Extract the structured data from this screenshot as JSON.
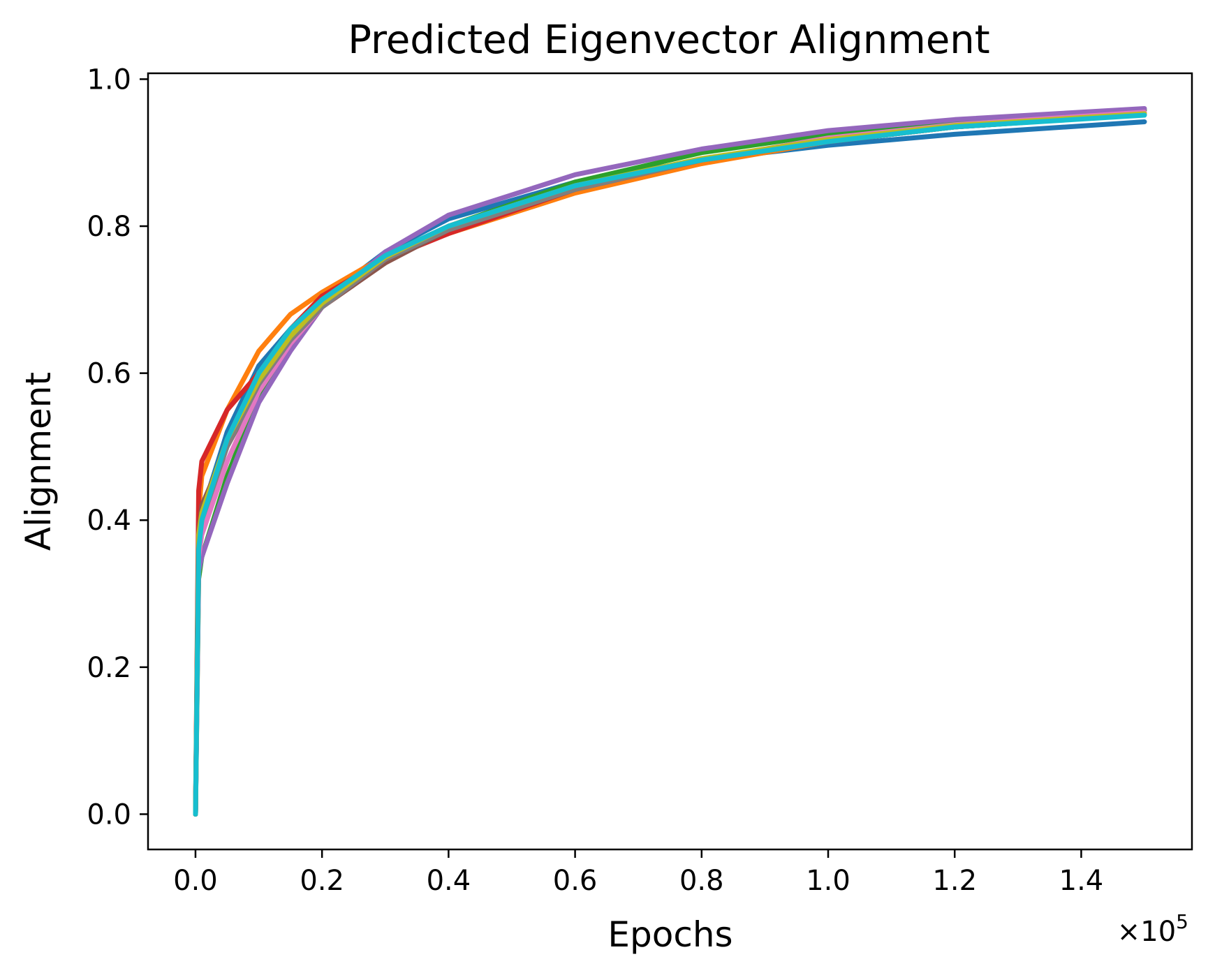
{
  "chart_data": {
    "type": "line",
    "title": "Predicted Eigenvector Alignment",
    "xlabel": "Epochs",
    "ylabel": "Alignment",
    "x_offset_label": "×10",
    "x_offset_exponent": "5",
    "xlim": [
      -0.075,
      1.575
    ],
    "ylim": [
      -0.048,
      1.008
    ],
    "x_ticks": [
      0.0,
      0.2,
      0.4,
      0.6,
      0.8,
      1.0,
      1.2,
      1.4
    ],
    "x_tick_labels": [
      "0.0",
      "0.2",
      "0.4",
      "0.6",
      "0.8",
      "1.0",
      "1.2",
      "1.4"
    ],
    "y_ticks": [
      0.0,
      0.2,
      0.4,
      0.6,
      0.8,
      1.0
    ],
    "y_tick_labels": [
      "0.0",
      "0.2",
      "0.4",
      "0.6",
      "0.8",
      "1.0"
    ],
    "grid": false,
    "legend": "none",
    "x": [
      0.0,
      0.005,
      0.01,
      0.05,
      0.1,
      0.15,
      0.2,
      0.3,
      0.4,
      0.6,
      0.8,
      1.0,
      1.2,
      1.5
    ],
    "series": [
      {
        "color": "#1f77b4",
        "values": [
          0.0,
          0.36,
          0.41,
          0.52,
          0.61,
          0.66,
          0.7,
          0.765,
          0.81,
          0.86,
          0.89,
          0.91,
          0.925,
          0.942
        ]
      },
      {
        "color": "#ff7f0e",
        "values": [
          0.0,
          0.41,
          0.46,
          0.55,
          0.63,
          0.68,
          0.71,
          0.76,
          0.79,
          0.845,
          0.885,
          0.915,
          0.935,
          0.952
        ]
      },
      {
        "color": "#2ca02c",
        "values": [
          0.0,
          0.32,
          0.35,
          0.46,
          0.57,
          0.64,
          0.69,
          0.76,
          0.8,
          0.86,
          0.9,
          0.925,
          0.942,
          0.958
        ]
      },
      {
        "color": "#d62728",
        "values": [
          0.0,
          0.44,
          0.48,
          0.55,
          0.6,
          0.66,
          0.705,
          0.755,
          0.79,
          0.85,
          0.89,
          0.915,
          0.935,
          0.952
        ]
      },
      {
        "color": "#9467bd",
        "values": [
          0.0,
          0.33,
          0.35,
          0.45,
          0.56,
          0.63,
          0.69,
          0.765,
          0.815,
          0.87,
          0.905,
          0.93,
          0.945,
          0.96
        ]
      },
      {
        "color": "#8c564b",
        "values": [
          0.0,
          0.38,
          0.42,
          0.5,
          0.58,
          0.64,
          0.69,
          0.75,
          0.795,
          0.85,
          0.89,
          0.915,
          0.935,
          0.952
        ]
      },
      {
        "color": "#e377c2",
        "values": [
          0.0,
          0.35,
          0.38,
          0.48,
          0.575,
          0.64,
          0.69,
          0.755,
          0.8,
          0.855,
          0.89,
          0.92,
          0.938,
          0.955
        ]
      },
      {
        "color": "#7f7f7f",
        "values": [
          0.0,
          0.37,
          0.4,
          0.5,
          0.585,
          0.645,
          0.69,
          0.755,
          0.795,
          0.85,
          0.89,
          0.915,
          0.935,
          0.952
        ]
      },
      {
        "color": "#bcbd22",
        "values": [
          0.0,
          0.38,
          0.41,
          0.51,
          0.59,
          0.65,
          0.695,
          0.758,
          0.8,
          0.855,
          0.892,
          0.918,
          0.937,
          0.953
        ]
      },
      {
        "color": "#17becf",
        "values": [
          0.0,
          0.36,
          0.4,
          0.51,
          0.6,
          0.66,
          0.7,
          0.76,
          0.8,
          0.855,
          0.89,
          0.915,
          0.935,
          0.951
        ]
      }
    ]
  }
}
